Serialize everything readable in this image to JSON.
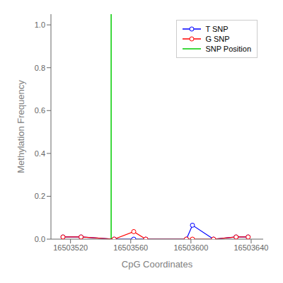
{
  "chart_data": {
    "type": "line",
    "title": "",
    "xlabel": "CpG Coordinates",
    "ylabel": "Methylation Frequency",
    "x": [
      16503515,
      16503527,
      16503549,
      16503562,
      16503570,
      16503597,
      16503601,
      16503615,
      16503630,
      16503638
    ],
    "series": [
      {
        "name": "T SNP",
        "color": "#0000FF",
        "marker": "o",
        "values": [
          0.01,
          0.01,
          0.0,
          0.0,
          0.0,
          0.0,
          0.065,
          0.0,
          0.01,
          0.01
        ]
      },
      {
        "name": "G SNP",
        "color": "#FF0000",
        "marker": "o",
        "values": [
          0.01,
          0.01,
          0.0,
          0.035,
          0.0,
          0.0,
          0.0,
          0.0,
          0.01,
          0.01
        ]
      }
    ],
    "vline": {
      "name": "SNP Position",
      "x": 16503547,
      "color": "#00CC00"
    },
    "xlim": [
      16503507,
      16503648
    ],
    "ylim": [
      0.0,
      1.05
    ],
    "xticks": [
      16503520,
      16503560,
      16503600,
      16503640
    ],
    "yticks": [
      {
        "value": 0.0,
        "label": "0.0"
      },
      0.2,
      0.4,
      0.6,
      0.8,
      {
        "value": 1.0,
        "label": "1.0"
      }
    ],
    "grid": false,
    "legend": "upper right"
  }
}
